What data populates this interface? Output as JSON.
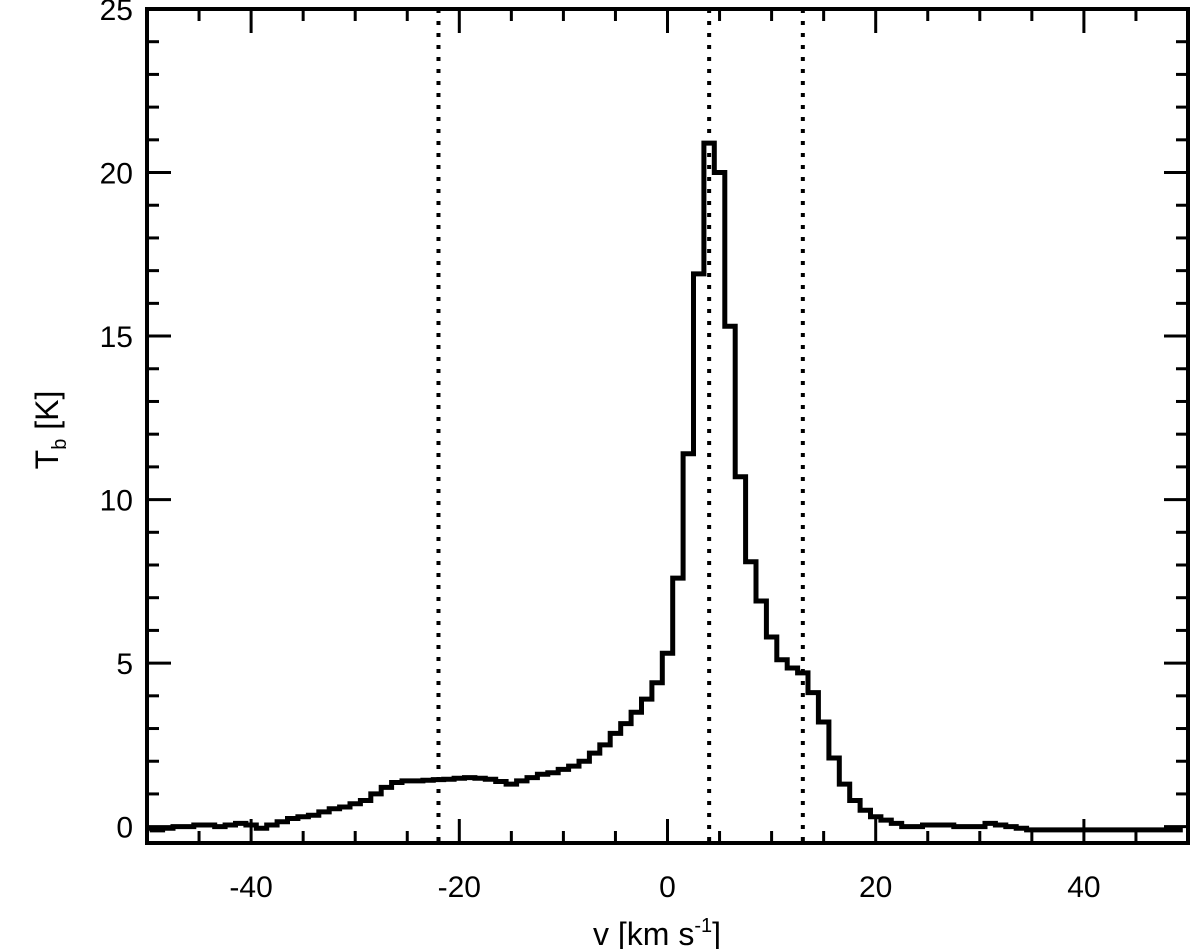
{
  "chart_data": {
    "type": "line",
    "line_style": "step",
    "xlabel": {
      "main": "v [km s",
      "superscript": "-1",
      "close": "]"
    },
    "ylabel": {
      "main": "T",
      "subscript": "b",
      "rest": " [K]"
    },
    "xlim": [
      -50,
      50
    ],
    "ylim": [
      -0.5,
      25
    ],
    "x_ticks": [
      -40,
      -20,
      0,
      20,
      40
    ],
    "x_tick_labels": [
      "-40",
      "-20",
      "0",
      "20",
      "40"
    ],
    "y_ticks": [
      0,
      5,
      10,
      15,
      20,
      25
    ],
    "y_tick_labels": [
      "0",
      "5",
      "10",
      "15",
      "20",
      "25"
    ],
    "vertical_markers": [
      -22,
      4,
      13
    ],
    "series": [
      {
        "x": [
          -50,
          -49,
          -48,
          -47,
          -46,
          -45,
          -44,
          -43,
          -42,
          -41,
          -40,
          -39,
          -38,
          -37,
          -36,
          -35,
          -34,
          -33,
          -32,
          -31,
          -30,
          -29,
          -28,
          -27,
          -26,
          -25,
          -24,
          -23,
          -22,
          -21,
          -20,
          -19,
          -18,
          -17,
          -16,
          -15,
          -14,
          -13,
          -12,
          -11,
          -10,
          -9,
          -8,
          -7,
          -6,
          -5,
          -4,
          -3,
          -2,
          -1,
          0,
          1,
          2,
          3,
          4,
          5,
          6,
          7,
          8,
          9,
          10,
          11,
          12,
          13,
          14,
          15,
          16,
          17,
          18,
          19,
          20,
          21,
          22,
          23,
          24,
          25,
          26,
          27,
          28,
          29,
          30,
          31,
          32,
          33,
          34,
          35,
          36,
          37,
          38,
          39,
          40,
          41,
          42,
          43,
          44,
          45,
          46,
          47,
          48,
          49
        ],
        "y": [
          -0.05,
          -0.1,
          -0.05,
          0,
          0,
          0.05,
          0.05,
          0,
          0.05,
          0.1,
          0.05,
          -0.05,
          0.05,
          0.15,
          0.25,
          0.3,
          0.35,
          0.45,
          0.55,
          0.6,
          0.7,
          0.8,
          1.0,
          1.2,
          1.35,
          1.4,
          1.4,
          1.42,
          1.44,
          1.45,
          1.48,
          1.5,
          1.48,
          1.45,
          1.38,
          1.3,
          1.4,
          1.5,
          1.6,
          1.65,
          1.75,
          1.85,
          2.0,
          2.25,
          2.5,
          2.85,
          3.15,
          3.5,
          3.9,
          4.4,
          5.3,
          7.6,
          11.4,
          16.9,
          20.9,
          20.0,
          15.3,
          10.7,
          8.1,
          6.9,
          5.8,
          5.1,
          4.85,
          4.7,
          4.1,
          3.2,
          2.1,
          1.3,
          0.8,
          0.5,
          0.3,
          0.2,
          0.1,
          0.0,
          0.0,
          0.05,
          0.05,
          0.05,
          0.0,
          0.0,
          0.0,
          0.1,
          0.05,
          0.0,
          -0.05,
          -0.1,
          -0.1,
          -0.1,
          -0.1,
          -0.1,
          -0.1,
          -0.1,
          -0.1,
          -0.1,
          -0.1,
          -0.1,
          -0.1,
          -0.1,
          -0.1,
          -0.1
        ]
      }
    ]
  }
}
